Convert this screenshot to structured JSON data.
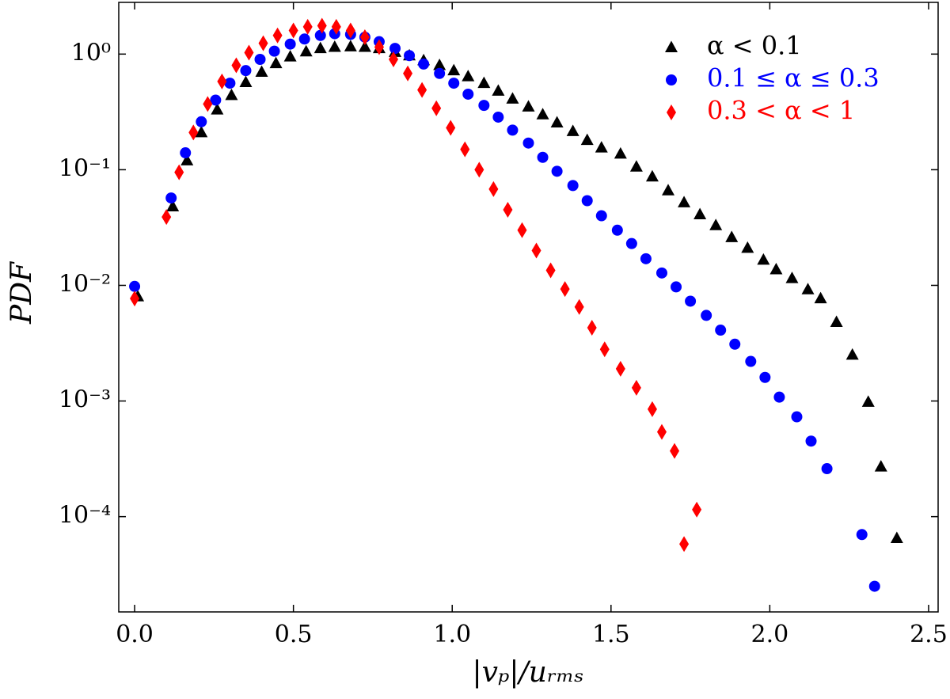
{
  "chart_data": {
    "type": "scatter",
    "xlabel": "|vₚ|/uᵣₘₛ",
    "ylabel": "PDF",
    "xlim": [
      -0.05,
      2.53
    ],
    "ylim": [
      1.5e-05,
      2.8
    ],
    "yscale": "log",
    "xticks": [
      {
        "value": 0,
        "label": "0.0"
      },
      0.5,
      {
        "value": 1,
        "label": "1.0"
      },
      1.5,
      {
        "value": 2,
        "label": "2.0"
      },
      2.5
    ],
    "yticks": [
      {
        "value": 1,
        "label": "10⁰"
      },
      {
        "value": 0.1,
        "label": "10⁻¹"
      },
      {
        "value": 0.01,
        "label": "10⁻²"
      },
      {
        "value": 0.001,
        "label": "10⁻³"
      },
      {
        "value": 0.0001,
        "label": "10⁻⁴"
      }
    ],
    "grid": false,
    "legend": "upper right",
    "series": [
      {
        "name": "α < 0.1",
        "color": "#000000",
        "marker": "triangle",
        "x": [
          0.01,
          0.12,
          0.165,
          0.21,
          0.26,
          0.305,
          0.35,
          0.4,
          0.445,
          0.49,
          0.54,
          0.585,
          0.63,
          0.68,
          0.725,
          0.77,
          0.82,
          0.865,
          0.91,
          0.96,
          1.005,
          1.05,
          1.1,
          1.145,
          1.19,
          1.24,
          1.285,
          1.33,
          1.38,
          1.425,
          1.47,
          1.53,
          1.58,
          1.63,
          1.68,
          1.73,
          1.78,
          1.83,
          1.88,
          1.93,
          1.98,
          2.02,
          2.07,
          2.12,
          2.16,
          2.21,
          2.26,
          2.31,
          2.35,
          2.4
        ],
        "values": [
          0.008,
          0.048,
          0.12,
          0.21,
          0.33,
          0.44,
          0.57,
          0.7,
          0.83,
          0.95,
          1.05,
          1.12,
          1.15,
          1.16,
          1.15,
          1.12,
          1.04,
          0.97,
          0.88,
          0.8,
          0.72,
          0.64,
          0.56,
          0.48,
          0.41,
          0.35,
          0.3,
          0.255,
          0.215,
          0.18,
          0.155,
          0.137,
          0.106,
          0.087,
          0.066,
          0.052,
          0.041,
          0.033,
          0.026,
          0.021,
          0.0166,
          0.0137,
          0.0115,
          0.0092,
          0.0077,
          0.0048,
          0.0025,
          0.00098,
          0.00027,
          6.5e-05
        ]
      },
      {
        "name": "0.1 ≤ α ≤ 0.3",
        "color": "#0000ff",
        "marker": "circle",
        "x": [
          0.0,
          0.115,
          0.16,
          0.21,
          0.255,
          0.3,
          0.35,
          0.395,
          0.44,
          0.49,
          0.535,
          0.585,
          0.63,
          0.68,
          0.725,
          0.77,
          0.82,
          0.865,
          0.91,
          0.96,
          1.005,
          1.05,
          1.1,
          1.145,
          1.19,
          1.24,
          1.285,
          1.33,
          1.38,
          1.425,
          1.47,
          1.52,
          1.565,
          1.61,
          1.66,
          1.705,
          1.75,
          1.8,
          1.845,
          1.89,
          1.94,
          1.985,
          2.03,
          2.085,
          2.13,
          2.18,
          2.29,
          2.33
        ],
        "values": [
          0.0098,
          0.057,
          0.14,
          0.26,
          0.4,
          0.56,
          0.72,
          0.9,
          1.06,
          1.22,
          1.35,
          1.45,
          1.5,
          1.48,
          1.4,
          1.28,
          1.12,
          0.97,
          0.82,
          0.68,
          0.56,
          0.45,
          0.36,
          0.285,
          0.22,
          0.17,
          0.128,
          0.097,
          0.073,
          0.054,
          0.04,
          0.03,
          0.023,
          0.017,
          0.0128,
          0.0097,
          0.0073,
          0.0055,
          0.0041,
          0.0031,
          0.0022,
          0.0016,
          0.00108,
          0.00073,
          0.00045,
          0.00026,
          7e-05,
          2.5e-05
        ]
      },
      {
        "name": "0.3 < α < 1",
        "color": "#ff0000",
        "marker": "diamond",
        "x": [
          0.0,
          0.1,
          0.14,
          0.185,
          0.23,
          0.275,
          0.32,
          0.36,
          0.405,
          0.45,
          0.5,
          0.545,
          0.59,
          0.635,
          0.68,
          0.725,
          0.77,
          0.815,
          0.86,
          0.905,
          0.95,
          0.995,
          1.04,
          1.085,
          1.13,
          1.175,
          1.22,
          1.265,
          1.31,
          1.355,
          1.4,
          1.44,
          1.48,
          1.53,
          1.58,
          1.63,
          1.66,
          1.7,
          1.73,
          1.77
        ],
        "values": [
          0.0077,
          0.039,
          0.095,
          0.21,
          0.37,
          0.58,
          0.8,
          1.03,
          1.24,
          1.45,
          1.6,
          1.72,
          1.76,
          1.72,
          1.6,
          1.4,
          1.15,
          0.9,
          0.68,
          0.49,
          0.34,
          0.23,
          0.15,
          0.1,
          0.068,
          0.045,
          0.03,
          0.02,
          0.0135,
          0.0093,
          0.0065,
          0.0043,
          0.0028,
          0.0019,
          0.0013,
          0.00085,
          0.00054,
          0.00037,
          5.8e-05,
          0.000115
        ]
      }
    ]
  }
}
